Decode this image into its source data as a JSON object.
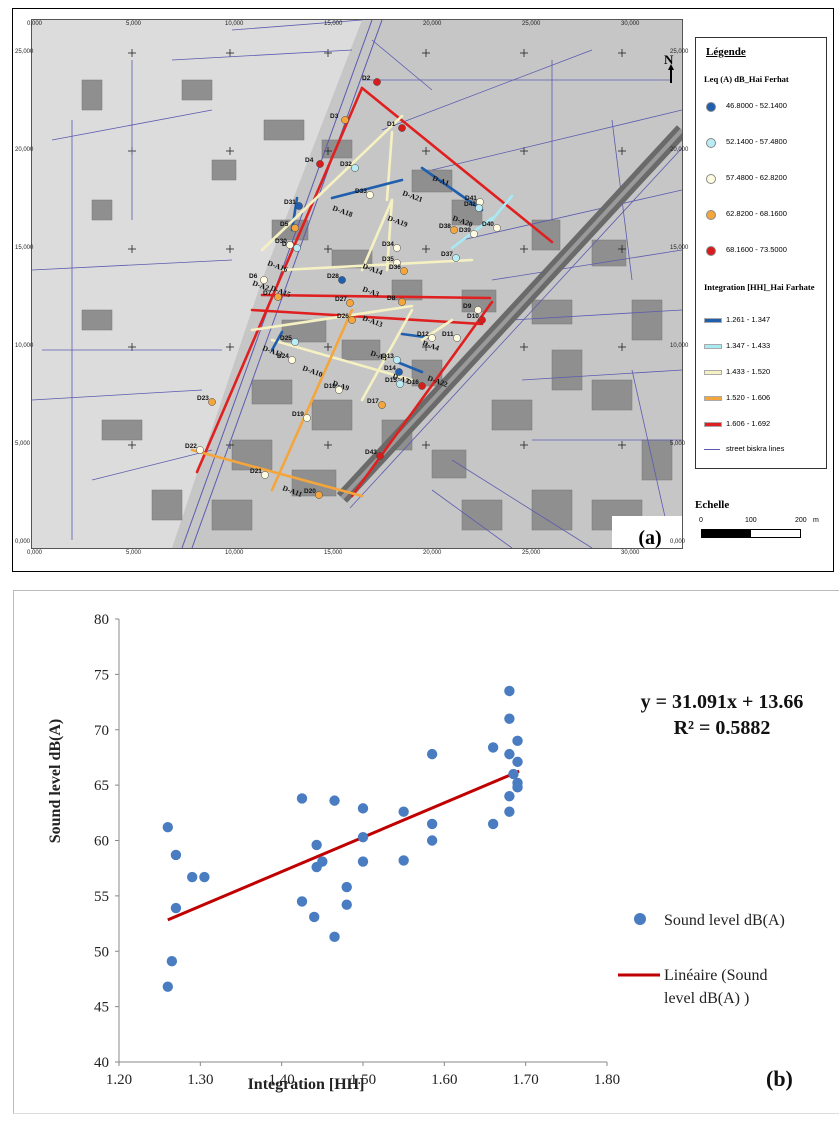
{
  "map": {
    "panel_label": "(a)",
    "north_label": "N",
    "legend": {
      "title": "Légende",
      "points_heading": "Leq (A) dB_Hai Ferhat",
      "point_classes": [
        {
          "label": "46.8000 - 52.1400",
          "color": "#1f5fae"
        },
        {
          "label": "52.1400 - 57.4800",
          "color": "#b9ecf4"
        },
        {
          "label": "57.4800 - 62.8200",
          "color": "#fffbe0"
        },
        {
          "label": "62.8200 - 68.1600",
          "color": "#f4a63c"
        },
        {
          "label": "68.1600 - 73.5000",
          "color": "#d81c1c"
        }
      ],
      "lines_heading": "Integration [HH]_Hai Farhate",
      "line_classes": [
        {
          "label": "1.261 - 1.347",
          "color": "#1f5fae"
        },
        {
          "label": "1.347 - 1.433",
          "color": "#a8eaf4"
        },
        {
          "label": "1.433 - 1.520",
          "color": "#f5f1c2"
        },
        {
          "label": "1.520 - 1.606",
          "color": "#f4a63c"
        },
        {
          "label": "1.606 - 1.692",
          "color": "#e02020"
        }
      ],
      "street_label": "street biskra lines",
      "street_color": "#5b5bb0"
    },
    "scale": {
      "title": "Echelle",
      "labels": [
        "0",
        "100",
        "200",
        "m"
      ]
    },
    "x_coords": [
      "0,000",
      "5,000",
      "10,000",
      "15,000",
      "20,000",
      "25,000",
      "30,000"
    ],
    "y_coords": [
      "25,000",
      "20,000",
      "15,000",
      "10,000",
      "5,000",
      "0,000"
    ],
    "street_labels": [
      "D-A1",
      "D-A21",
      "D-A18",
      "D-A19",
      "D-A20",
      "D-A16",
      "D-A2",
      "D-A15",
      "D-A14",
      "D-A3",
      "D-A13",
      "D-A12",
      "D-A10",
      "D-A9",
      "D-A5",
      "D-A7",
      "D-A4",
      "D-A22",
      "D-A11"
    ],
    "points": [
      {
        "label": "D1",
        "level": 5
      },
      {
        "label": "D2",
        "level": 5
      },
      {
        "label": "D3",
        "level": 4
      },
      {
        "label": "D4",
        "level": 5
      },
      {
        "label": "D5",
        "level": 4
      },
      {
        "label": "D6",
        "level": 3
      },
      {
        "label": "D7",
        "level": 4
      },
      {
        "label": "D8",
        "level": 4
      },
      {
        "label": "D9",
        "level": 3
      },
      {
        "label": "D10",
        "level": 5
      },
      {
        "label": "D11",
        "level": 3
      },
      {
        "label": "D12",
        "level": 3
      },
      {
        "label": "D13",
        "level": 2
      },
      {
        "label": "D14",
        "level": 1
      },
      {
        "label": "D15",
        "level": 2
      },
      {
        "label": "D16",
        "level": 5
      },
      {
        "label": "D17",
        "level": 4
      },
      {
        "label": "D18",
        "level": 3
      },
      {
        "label": "D19",
        "level": 3
      },
      {
        "label": "D20",
        "level": 4
      },
      {
        "label": "D21",
        "level": 3
      },
      {
        "label": "D22",
        "level": 3
      },
      {
        "label": "D23",
        "level": 4
      },
      {
        "label": "D24",
        "level": 3
      },
      {
        "label": "D25",
        "level": 2
      },
      {
        "label": "D26",
        "level": 4
      },
      {
        "label": "D27",
        "level": 4
      },
      {
        "label": "D28",
        "level": 1
      },
      {
        "label": "D29",
        "level": 2
      },
      {
        "label": "D30",
        "level": 3
      },
      {
        "label": "D31",
        "level": 1
      },
      {
        "label": "D32",
        "level": 2
      },
      {
        "label": "D33",
        "level": 3
      },
      {
        "label": "D34",
        "level": 3
      },
      {
        "label": "D35",
        "level": 3
      },
      {
        "label": "D36",
        "level": 4
      },
      {
        "label": "D37",
        "level": 2
      },
      {
        "label": "D38",
        "level": 4
      },
      {
        "label": "D39",
        "level": 3
      },
      {
        "label": "D40",
        "level": 3
      },
      {
        "label": "D41",
        "level": 3
      },
      {
        "label": "D42",
        "level": 2
      },
      {
        "label": "D43",
        "level": 5
      }
    ]
  },
  "chart_data": {
    "type": "scatter",
    "panel_label": "(b)",
    "xlabel": "Integration [HH]",
    "ylabel": "Sound level dB(A)",
    "xlim": [
      1.2,
      1.8
    ],
    "ylim": [
      40,
      80
    ],
    "xticks": [
      "1.20",
      "1.30",
      "1.40",
      "1.50",
      "1.60",
      "1.70",
      "1.80"
    ],
    "yticks": [
      "40",
      "45",
      "50",
      "55",
      "60",
      "65",
      "70",
      "75",
      "80"
    ],
    "grid": false,
    "series": [
      {
        "name": "Sound level dB(A)",
        "color": "#4a7cc1",
        "points": [
          [
            1.26,
            61.2
          ],
          [
            1.26,
            46.8
          ],
          [
            1.265,
            49.1
          ],
          [
            1.27,
            53.9
          ],
          [
            1.27,
            58.7
          ],
          [
            1.29,
            56.7
          ],
          [
            1.305,
            56.7
          ],
          [
            1.425,
            63.8
          ],
          [
            1.425,
            54.5
          ],
          [
            1.44,
            53.1
          ],
          [
            1.443,
            57.6
          ],
          [
            1.443,
            59.6
          ],
          [
            1.45,
            58.1
          ],
          [
            1.465,
            63.6
          ],
          [
            1.465,
            51.3
          ],
          [
            1.48,
            55.8
          ],
          [
            1.48,
            54.2
          ],
          [
            1.5,
            62.9
          ],
          [
            1.5,
            60.3
          ],
          [
            1.5,
            58.1
          ],
          [
            1.55,
            62.6
          ],
          [
            1.55,
            58.2
          ],
          [
            1.585,
            67.8
          ],
          [
            1.585,
            61.5
          ],
          [
            1.585,
            60.0
          ],
          [
            1.66,
            68.4
          ],
          [
            1.66,
            61.5
          ],
          [
            1.68,
            73.5
          ],
          [
            1.68,
            71.0
          ],
          [
            1.68,
            67.8
          ],
          [
            1.68,
            64.0
          ],
          [
            1.68,
            62.6
          ],
          [
            1.69,
            69.0
          ],
          [
            1.69,
            67.1
          ],
          [
            1.69,
            65.2
          ],
          [
            1.69,
            64.8
          ],
          [
            1.685,
            66.0
          ]
        ]
      },
      {
        "name": "Linéaire (Sound level dB(A) )",
        "color": "#c00000",
        "type": "line",
        "x": [
          1.26,
          1.692
        ],
        "y": [
          52.83,
          66.26
        ]
      }
    ],
    "equation": "y = 31.091x + 13.66",
    "r2": "R² = 0.5882",
    "legend": [
      "Sound level dB(A)",
      "Linéaire (Sound",
      "level dB(A) )"
    ],
    "legend_position": "right"
  }
}
